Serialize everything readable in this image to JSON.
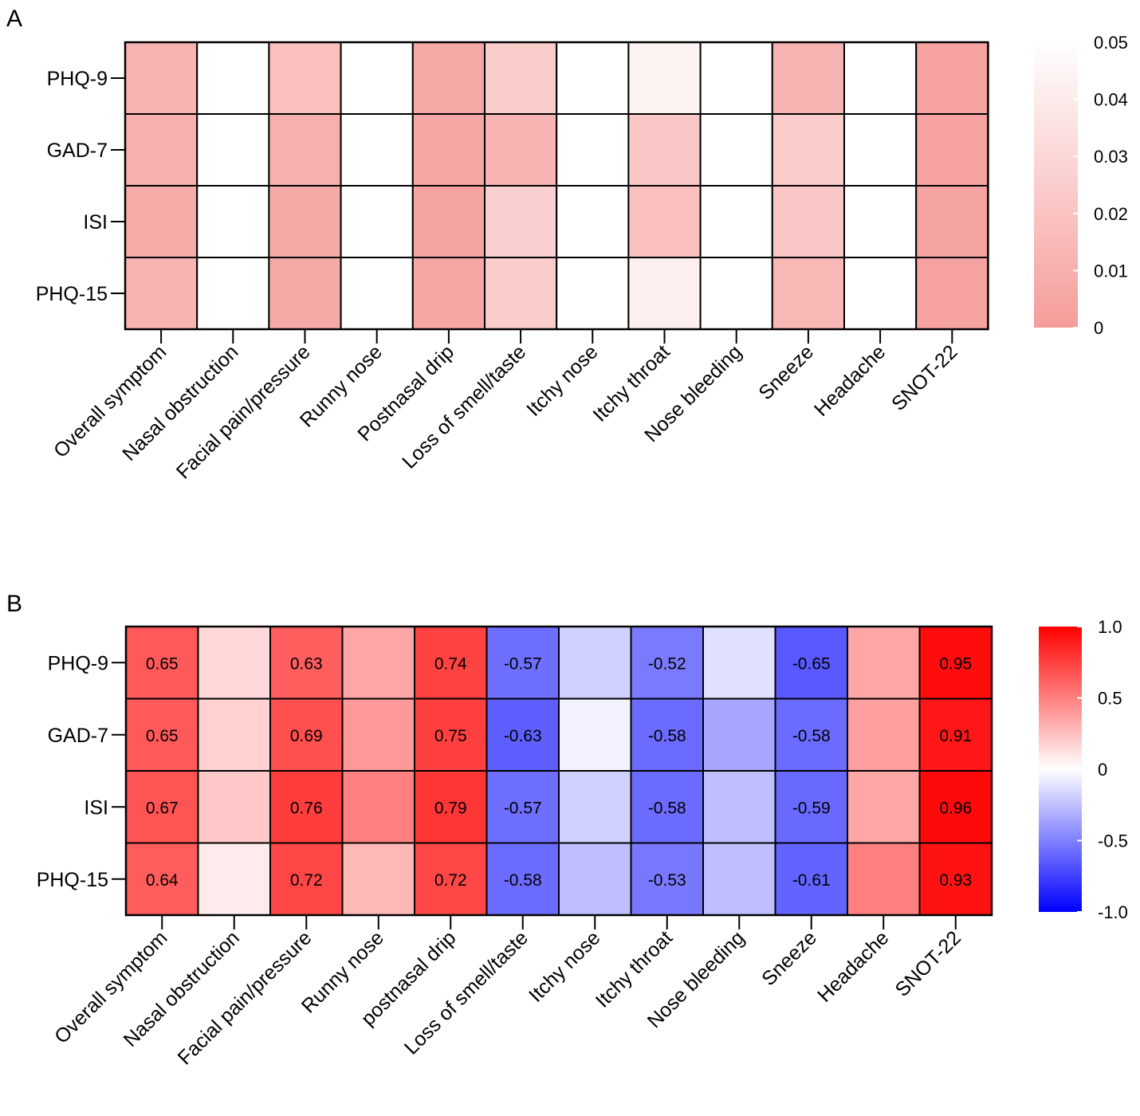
{
  "chart_data": [
    {
      "panel": "A",
      "type": "heatmap",
      "rows": [
        "PHQ-9",
        "GAD-7",
        "ISI",
        "PHQ-15"
      ],
      "columns": [
        "Overall symptom",
        "Nasal obstruction",
        "Facial pain/pressure",
        "Runny nose",
        "Postnasal drip",
        "Loss of smell/taste",
        "Itchy nose",
        "Itchy throat",
        "Nose bleeding",
        "Sneeze",
        "Headache",
        "SNOT-22"
      ],
      "values": [
        [
          0.012,
          0.05,
          0.018,
          0.05,
          0.006,
          0.024,
          0.05,
          0.044,
          0.05,
          0.012,
          0.05,
          0.003
        ],
        [
          0.01,
          0.05,
          0.01,
          0.05,
          0.005,
          0.012,
          0.05,
          0.022,
          0.05,
          0.024,
          0.05,
          0.003
        ],
        [
          0.008,
          0.05,
          0.007,
          0.05,
          0.004,
          0.026,
          0.05,
          0.018,
          0.05,
          0.022,
          0.05,
          0.004
        ],
        [
          0.012,
          0.05,
          0.007,
          0.05,
          0.005,
          0.024,
          0.05,
          0.042,
          0.05,
          0.014,
          0.05,
          0.003
        ]
      ],
      "cell_labels": null,
      "colorbar": {
        "min": 0,
        "max": 0.05,
        "low_color": "#f59c9a",
        "high_color": "#ffffff",
        "ticks": [
          0,
          0.01,
          0.02,
          0.03,
          0.04,
          0.05
        ],
        "tick_labels": [
          "0",
          "0.01",
          "0.02",
          "0.03",
          "0.04",
          "0.05"
        ]
      },
      "title": "",
      "xlabel": "",
      "ylabel": ""
    },
    {
      "panel": "B",
      "type": "heatmap",
      "rows": [
        "PHQ-9",
        "GAD-7",
        "ISI",
        "PHQ-15"
      ],
      "columns": [
        "Overall symptom",
        "Nasal obstruction",
        "Facial pain/pressure",
        "Runny nose",
        "postnasal drip",
        "Loss of smell/taste",
        "Itchy nose",
        "Itchy throat",
        "Nose bleeding",
        "Sneeze",
        "Headache",
        "SNOT-22"
      ],
      "values": [
        [
          0.65,
          0.15,
          0.63,
          0.35,
          0.74,
          -0.57,
          -0.18,
          -0.52,
          -0.12,
          -0.65,
          0.35,
          0.95
        ],
        [
          0.65,
          0.18,
          0.69,
          0.4,
          0.75,
          -0.63,
          -0.05,
          -0.58,
          -0.35,
          -0.58,
          0.38,
          0.91
        ],
        [
          0.67,
          0.22,
          0.76,
          0.5,
          0.79,
          -0.57,
          -0.18,
          -0.58,
          -0.25,
          -0.59,
          0.35,
          0.96
        ],
        [
          0.64,
          0.08,
          0.72,
          0.28,
          0.72,
          -0.58,
          -0.25,
          -0.53,
          -0.25,
          -0.61,
          0.5,
          0.93
        ]
      ],
      "cell_labels": [
        [
          "0.65",
          "",
          "0.63",
          "",
          "0.74",
          "-0.57",
          "",
          "-0.52",
          "",
          "-0.65",
          "",
          "0.95"
        ],
        [
          "0.65",
          "",
          "0.69",
          "",
          "0.75",
          "-0.63",
          "",
          "-0.58",
          "",
          "-0.58",
          "",
          "0.91"
        ],
        [
          "0.67",
          "",
          "0.76",
          "",
          "0.79",
          "-0.57",
          "",
          "-0.58",
          "",
          "-0.59",
          "",
          "0.96"
        ],
        [
          "0.64",
          "",
          "0.72",
          "",
          "0.72",
          "-0.58",
          "",
          "-0.53",
          "",
          "-0.61",
          "",
          "0.93"
        ]
      ],
      "colorbar": {
        "min": -1.0,
        "max": 1.0,
        "low_color": "#0000ff",
        "mid_color": "#ffffff",
        "high_color": "#ff0000",
        "ticks": [
          -1.0,
          -0.5,
          0,
          0.5,
          1.0
        ],
        "tick_labels": [
          "-1.0",
          "-0.5",
          "0",
          "0.5",
          "1.0"
        ]
      },
      "title": "",
      "xlabel": "",
      "ylabel": ""
    }
  ]
}
